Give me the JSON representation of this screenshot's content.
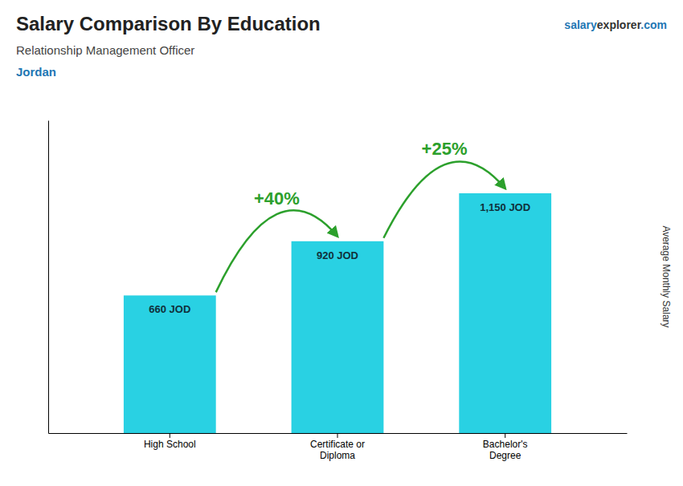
{
  "chart_data": {
    "type": "bar",
    "title": "Salary Comparison By Education",
    "subtitle": "Relationship Management Officer",
    "country": "Jordan",
    "website": [
      "salary",
      "explorer",
      ".com"
    ],
    "categories": [
      "High School",
      "Certificate or\nDiploma",
      "Bachelor's\nDegree"
    ],
    "values": [
      660,
      920,
      1150
    ],
    "value_labels": [
      "660 JOD",
      "920 JOD",
      "1,150 JOD"
    ],
    "data_labels": true,
    "annotations": [
      "+40%",
      "+25%"
    ],
    "ylabel": "Average Monthly Salary",
    "ylim": [
      0,
      1500
    ],
    "tick_labels": "x",
    "color": "#29d1e3"
  }
}
